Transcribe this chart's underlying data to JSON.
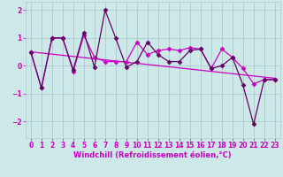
{
  "bg_color": "#cce8e8",
  "grid_color": "#aacccc",
  "line_color": "#cc00cc",
  "line_color2": "#660066",
  "xlabel": "Windchill (Refroidissement éolien,°C)",
  "xlim": [
    -0.5,
    23.5
  ],
  "ylim": [
    -2.6,
    2.3
  ],
  "yticks": [
    -2,
    -1,
    0,
    1,
    2
  ],
  "xticks": [
    0,
    1,
    2,
    3,
    4,
    5,
    6,
    7,
    8,
    9,
    10,
    11,
    12,
    13,
    14,
    15,
    16,
    17,
    18,
    19,
    20,
    21,
    22,
    23
  ],
  "series1_x": [
    0,
    1,
    2,
    3,
    4,
    5,
    6,
    7,
    8,
    9,
    10,
    11,
    12,
    13,
    14,
    15,
    16,
    17,
    18,
    19,
    20,
    21,
    22,
    23
  ],
  "series1_y": [
    0.5,
    -0.8,
    1.0,
    1.0,
    -0.2,
    1.1,
    0.3,
    0.15,
    0.15,
    0.15,
    0.85,
    0.4,
    0.55,
    0.6,
    0.55,
    0.65,
    0.6,
    -0.1,
    0.6,
    0.3,
    -0.1,
    -0.65,
    -0.5,
    -0.5
  ],
  "series2_x": [
    0,
    1,
    2,
    3,
    4,
    5,
    6,
    7,
    8,
    9,
    10,
    11,
    12,
    13,
    14,
    15,
    16,
    17,
    18,
    19,
    20,
    21,
    22,
    23
  ],
  "series2_y": [
    0.5,
    -0.8,
    1.0,
    1.0,
    -0.15,
    1.2,
    -0.05,
    2.0,
    1.0,
    -0.05,
    0.15,
    0.85,
    0.4,
    0.15,
    0.15,
    0.55,
    0.6,
    -0.1,
    0.0,
    0.3,
    -0.7,
    -2.1,
    -0.5,
    -0.5
  ],
  "trend_x": [
    0,
    23
  ],
  "trend_y": [
    0.5,
    -0.45
  ],
  "marker": "D",
  "markersize": 2.5,
  "linewidth": 0.9,
  "xlabel_fontsize": 6,
  "tick_fontsize": 5.5
}
